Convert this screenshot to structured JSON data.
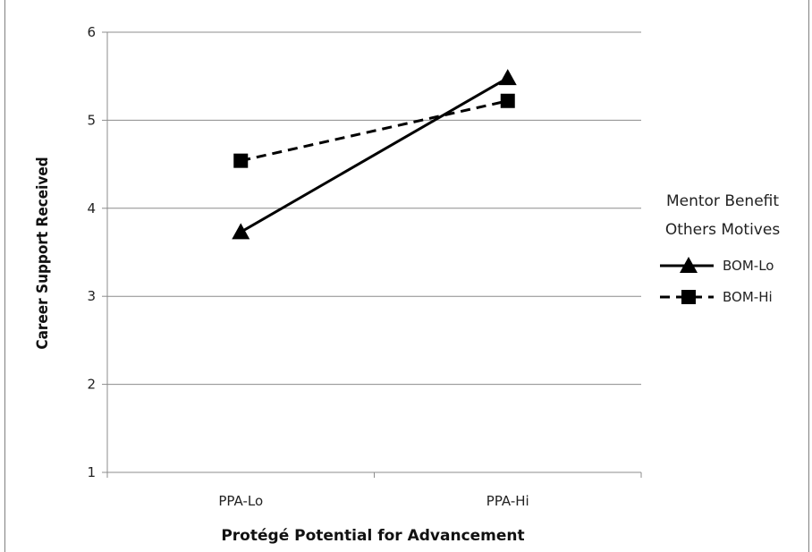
{
  "chart_data": {
    "type": "line",
    "categories": [
      "PPA-Lo",
      "PPA-Hi"
    ],
    "xlabel": "Protégé Potential for Advancement",
    "ylabel": "Career Support Received",
    "ylim": [
      1,
      6
    ],
    "yticks": [
      1,
      2,
      3,
      4,
      5,
      6
    ],
    "grid": true,
    "legend_title": [
      "Mentor Benefit",
      "Others Motives"
    ],
    "legend_position": "right",
    "series": [
      {
        "name": "BOM-Lo",
        "values": [
          3.73,
          5.48
        ],
        "marker": "triangle",
        "line_style": "solid",
        "color": "#000000"
      },
      {
        "name": "BOM-Hi",
        "values": [
          4.54,
          5.22
        ],
        "marker": "square",
        "line_style": "dashed",
        "color": "#000000"
      }
    ]
  }
}
